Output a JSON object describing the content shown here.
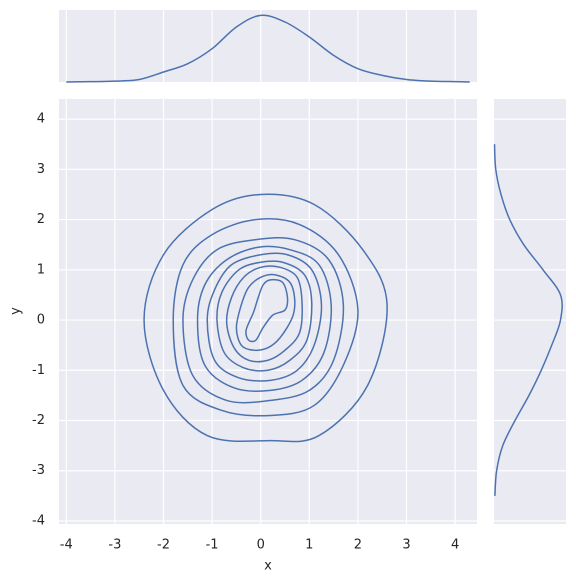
{
  "chart_data": {
    "type": "jointplot",
    "xlabel": "x",
    "ylabel": "y",
    "color": "#4c72b0",
    "grid": true,
    "xlim": [
      -4.15,
      4.45
    ],
    "ylim": [
      -4.06,
      4.4
    ],
    "xticks": [
      -4,
      -3,
      -2,
      -1,
      0,
      1,
      2,
      3,
      4
    ],
    "yticks": [
      -4,
      -3,
      -2,
      -1,
      0,
      1,
      2,
      3,
      4
    ],
    "contours": [
      {
        "x": [
          2.6,
          2.1,
          1.1,
          0,
          -1.0,
          -2.0,
          -2.4,
          -2.0,
          -1.1,
          0.2,
          1.2,
          2.2
        ],
        "y": [
          0.3,
          1.4,
          2.3,
          2.5,
          2.2,
          1.3,
          0,
          -1.4,
          -2.3,
          -2.4,
          -2.3,
          -1.3
        ]
      },
      {
        "x": [
          2.0,
          1.6,
          0.8,
          -0.1,
          -1.0,
          -1.6,
          -1.8,
          -1.6,
          -0.8,
          0.2,
          1.1,
          1.7
        ],
        "y": [
          0.2,
          1.3,
          1.9,
          2.0,
          1.7,
          1.1,
          0,
          -1.3,
          -1.8,
          -1.9,
          -1.7,
          -0.9
        ]
      },
      {
        "x": [
          1.7,
          1.4,
          0.7,
          -0.1,
          -0.9,
          -1.4,
          -1.6,
          -1.4,
          -0.7,
          0.2,
          1.0,
          1.5
        ],
        "y": [
          0.3,
          1.2,
          1.6,
          1.6,
          1.4,
          0.8,
          0,
          -1.1,
          -1.6,
          -1.6,
          -1.4,
          -0.8
        ]
      },
      {
        "x": [
          1.45,
          1.2,
          0.6,
          -0.05,
          -0.7,
          -1.15,
          -1.3,
          -1.15,
          -0.55,
          0.2,
          0.85,
          1.3
        ],
        "y": [
          0.3,
          1.1,
          1.4,
          1.45,
          1.2,
          0.7,
          0,
          -0.9,
          -1.35,
          -1.4,
          -1.2,
          -0.65
        ]
      },
      {
        "x": [
          1.25,
          1.05,
          0.55,
          0,
          -0.6,
          -0.95,
          -1.1,
          -0.95,
          -0.45,
          0.2,
          0.75,
          1.1
        ],
        "y": [
          0.3,
          1.0,
          1.3,
          1.3,
          1.1,
          0.6,
          0,
          -0.8,
          -1.15,
          -1.2,
          -1.0,
          -0.5
        ]
      },
      {
        "x": [
          1.05,
          0.9,
          0.45,
          0,
          -0.45,
          -0.8,
          -0.9,
          -0.75,
          -0.35,
          0.15,
          0.6,
          0.95
        ],
        "y": [
          0.35,
          0.9,
          1.15,
          1.15,
          1.0,
          0.55,
          0,
          -0.65,
          -0.95,
          -1.0,
          -0.8,
          -0.4
        ]
      },
      {
        "x": [
          0.85,
          0.75,
          0.4,
          0,
          -0.35,
          -0.6,
          -0.7,
          -0.55,
          -0.25,
          0.15,
          0.5,
          0.8
        ],
        "y": [
          0.35,
          0.85,
          1.05,
          1.05,
          0.85,
          0.45,
          -0.05,
          -0.55,
          -0.8,
          -0.8,
          -0.6,
          -0.25
        ]
      },
      {
        "x": [
          0.7,
          0.6,
          0.3,
          0,
          -0.25,
          -0.4,
          -0.5,
          -0.4,
          -0.15,
          0.15,
          0.4,
          0.65
        ],
        "y": [
          0.4,
          0.75,
          0.9,
          0.85,
          0.65,
          0.3,
          -0.15,
          -0.5,
          -0.6,
          -0.55,
          -0.35,
          0.05
        ]
      },
      {
        "x": [
          0.55,
          0.45,
          0.2,
          0.05,
          -0.05,
          -0.15,
          -0.3,
          -0.25,
          -0.1,
          0.05,
          0.25,
          0.5
        ],
        "y": [
          0.45,
          0.75,
          0.8,
          0.7,
          0.45,
          0.15,
          -0.2,
          -0.4,
          -0.4,
          -0.15,
          0.1,
          0.2
        ]
      }
    ],
    "marginal_x": {
      "lim": [
        0,
        0.42
      ],
      "x": [
        -4,
        -3.5,
        -3,
        -2.5,
        -2,
        -1.5,
        -1,
        -0.5,
        0,
        0.5,
        1,
        1.5,
        2,
        2.5,
        3,
        3.5,
        4,
        4.3
      ],
      "values": [
        0.0,
        0.002,
        0.005,
        0.015,
        0.06,
        0.11,
        0.2,
        0.33,
        0.4,
        0.36,
        0.27,
        0.16,
        0.08,
        0.04,
        0.015,
        0.005,
        0.002,
        0.0
      ]
    },
    "marginal_y": {
      "lim": [
        0,
        0.4
      ],
      "y": [
        -3.5,
        -3,
        -2.5,
        -2,
        -1.5,
        -1,
        -0.5,
        0,
        0.5,
        1,
        1.5,
        2,
        2.5,
        3,
        3.5
      ],
      "values": [
        0.005,
        0.015,
        0.05,
        0.12,
        0.2,
        0.27,
        0.33,
        0.38,
        0.38,
        0.28,
        0.17,
        0.09,
        0.04,
        0.01,
        0.003
      ]
    }
  }
}
